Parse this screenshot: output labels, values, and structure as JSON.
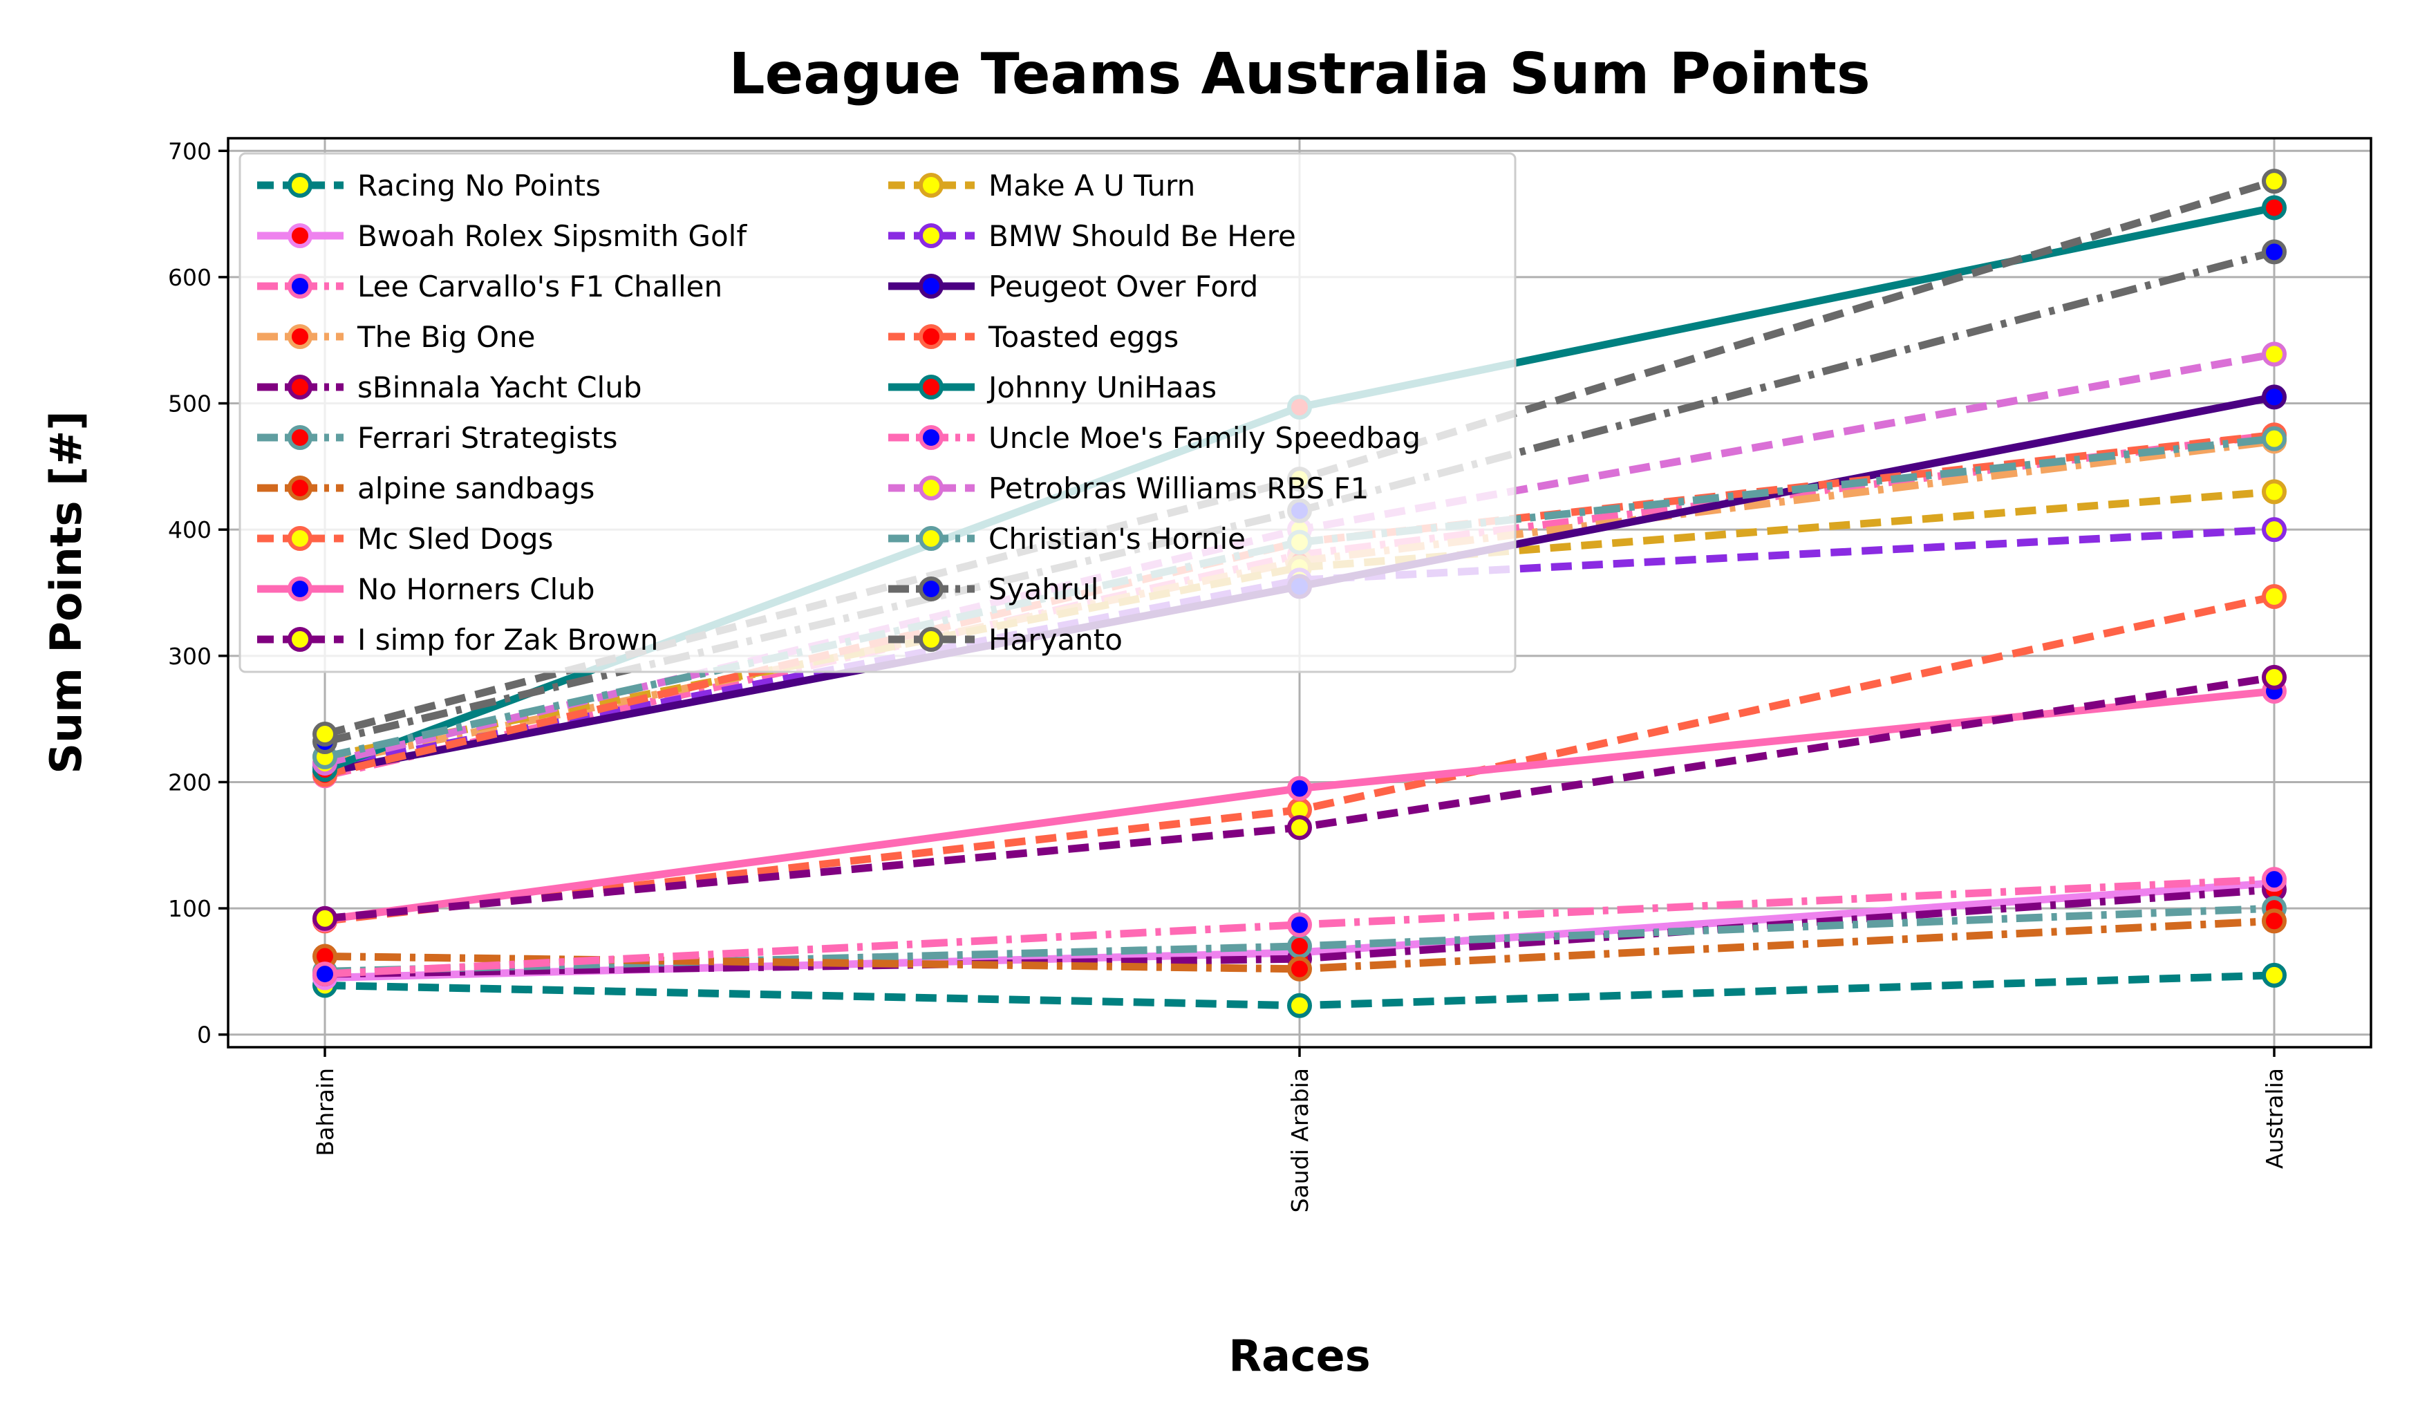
{
  "chart_data": {
    "type": "line",
    "title": "League Teams Australia Sum Points",
    "xlabel": "Races",
    "ylabel": "Sum Points [#]",
    "categories": [
      "Bahrain",
      "Saudi Arabia",
      "Australia"
    ],
    "ylim": [
      -10,
      710
    ],
    "yticks": [
      0,
      100,
      200,
      300,
      400,
      500,
      600,
      700
    ],
    "grid": true,
    "legend_position": "top-left",
    "legend_columns": 2,
    "series": [
      {
        "name": "Racing No Points",
        "values": [
          39,
          23,
          47
        ],
        "color": "#008080",
        "dash": "dash",
        "marker_face": "#ffff00",
        "marker_edge": "#008080"
      },
      {
        "name": "Bwoah Rolex Sipsmith Golf",
        "values": [
          45,
          65,
          120
        ],
        "color": "#ee82ee",
        "dash": "solid",
        "marker_face": "#ff0000",
        "marker_edge": "#ee82ee"
      },
      {
        "name": "Lee Carvallo's F1 Challen",
        "values": [
          205,
          380,
          475
        ],
        "color": "#ff69b4",
        "dash": "dashdot",
        "marker_face": "#0000ff",
        "marker_edge": "#ff69b4"
      },
      {
        "name": "The Big One",
        "values": [
          215,
          375,
          470
        ],
        "color": "#f4a460",
        "dash": "dashdot",
        "marker_face": "#ff0000",
        "marker_edge": "#f4a460"
      },
      {
        "name": "sBinnala Yacht Club",
        "values": [
          48,
          60,
          115
        ],
        "color": "#800080",
        "dash": "dashdot",
        "marker_face": "#ff0000",
        "marker_edge": "#800080"
      },
      {
        "name": "Ferrari Strategists",
        "values": [
          50,
          70,
          100
        ],
        "color": "#5f9ea0",
        "dash": "dashdot",
        "marker_face": "#ff0000",
        "marker_edge": "#5f9ea0"
      },
      {
        "name": "alpine sandbags",
        "values": [
          62,
          52,
          90
        ],
        "color": "#d2691e",
        "dash": "dashdot",
        "marker_face": "#ff0000",
        "marker_edge": "#d2691e"
      },
      {
        "name": "Mc Sled Dogs",
        "values": [
          90,
          178,
          347
        ],
        "color": "#ff6347",
        "dash": "dash",
        "marker_face": "#ffff00",
        "marker_edge": "#ff6347"
      },
      {
        "name": "No Horners Club",
        "values": [
          91,
          195,
          272
        ],
        "color": "#ff69b4",
        "dash": "solid",
        "marker_face": "#0000ff",
        "marker_edge": "#ff69b4"
      },
      {
        "name": "I simp for Zak Brown",
        "values": [
          92,
          164,
          283
        ],
        "color": "#800080",
        "dash": "dash",
        "marker_face": "#ffff00",
        "marker_edge": "#800080"
      },
      {
        "name": "Make A U Turn",
        "values": [
          220,
          370,
          430
        ],
        "color": "#daa520",
        "dash": "dash",
        "marker_face": "#ffff00",
        "marker_edge": "#daa520"
      },
      {
        "name": "BMW Should Be Here",
        "values": [
          212,
          360,
          400
        ],
        "color": "#8a2be2",
        "dash": "dash",
        "marker_face": "#ffff00",
        "marker_edge": "#8a2be2"
      },
      {
        "name": "Peugeot Over Ford",
        "values": [
          208,
          355,
          505
        ],
        "color": "#4b0082",
        "dash": "solid",
        "marker_face": "#0000ff",
        "marker_edge": "#4b0082"
      },
      {
        "name": "Toasted eggs",
        "values": [
          206,
          390,
          475
        ],
        "color": "#ff6347",
        "dash": "dash",
        "marker_face": "#ff0000",
        "marker_edge": "#ff6347"
      },
      {
        "name": "Johnny UniHaas",
        "values": [
          210,
          497,
          655
        ],
        "color": "#008080",
        "dash": "solid",
        "marker_face": "#ff0000",
        "marker_edge": "#008080"
      },
      {
        "name": "Uncle Moe's Family Speedbag",
        "values": [
          48,
          87,
          123
        ],
        "color": "#ff69b4",
        "dash": "dashdot",
        "marker_face": "#0000ff",
        "marker_edge": "#ff69b4"
      },
      {
        "name": "Petrobras Williams RBS F1",
        "values": [
          215,
          400,
          539
        ],
        "color": "#da70d6",
        "dash": "dash",
        "marker_face": "#ffff00",
        "marker_edge": "#da70d6"
      },
      {
        "name": "Christian's Hornie",
        "values": [
          220,
          390,
          472
        ],
        "color": "#5f9ea0",
        "dash": "dashdot",
        "marker_face": "#ffff00",
        "marker_edge": "#5f9ea0"
      },
      {
        "name": "Syahrul",
        "values": [
          232,
          415,
          620
        ],
        "color": "#696969",
        "dash": "dashdot",
        "marker_face": "#0000ff",
        "marker_edge": "#696969"
      },
      {
        "name": "Haryanto",
        "values": [
          238,
          440,
          676
        ],
        "color": "#696969",
        "dash": "dash",
        "marker_face": "#ffff00",
        "marker_edge": "#696969"
      }
    ]
  }
}
